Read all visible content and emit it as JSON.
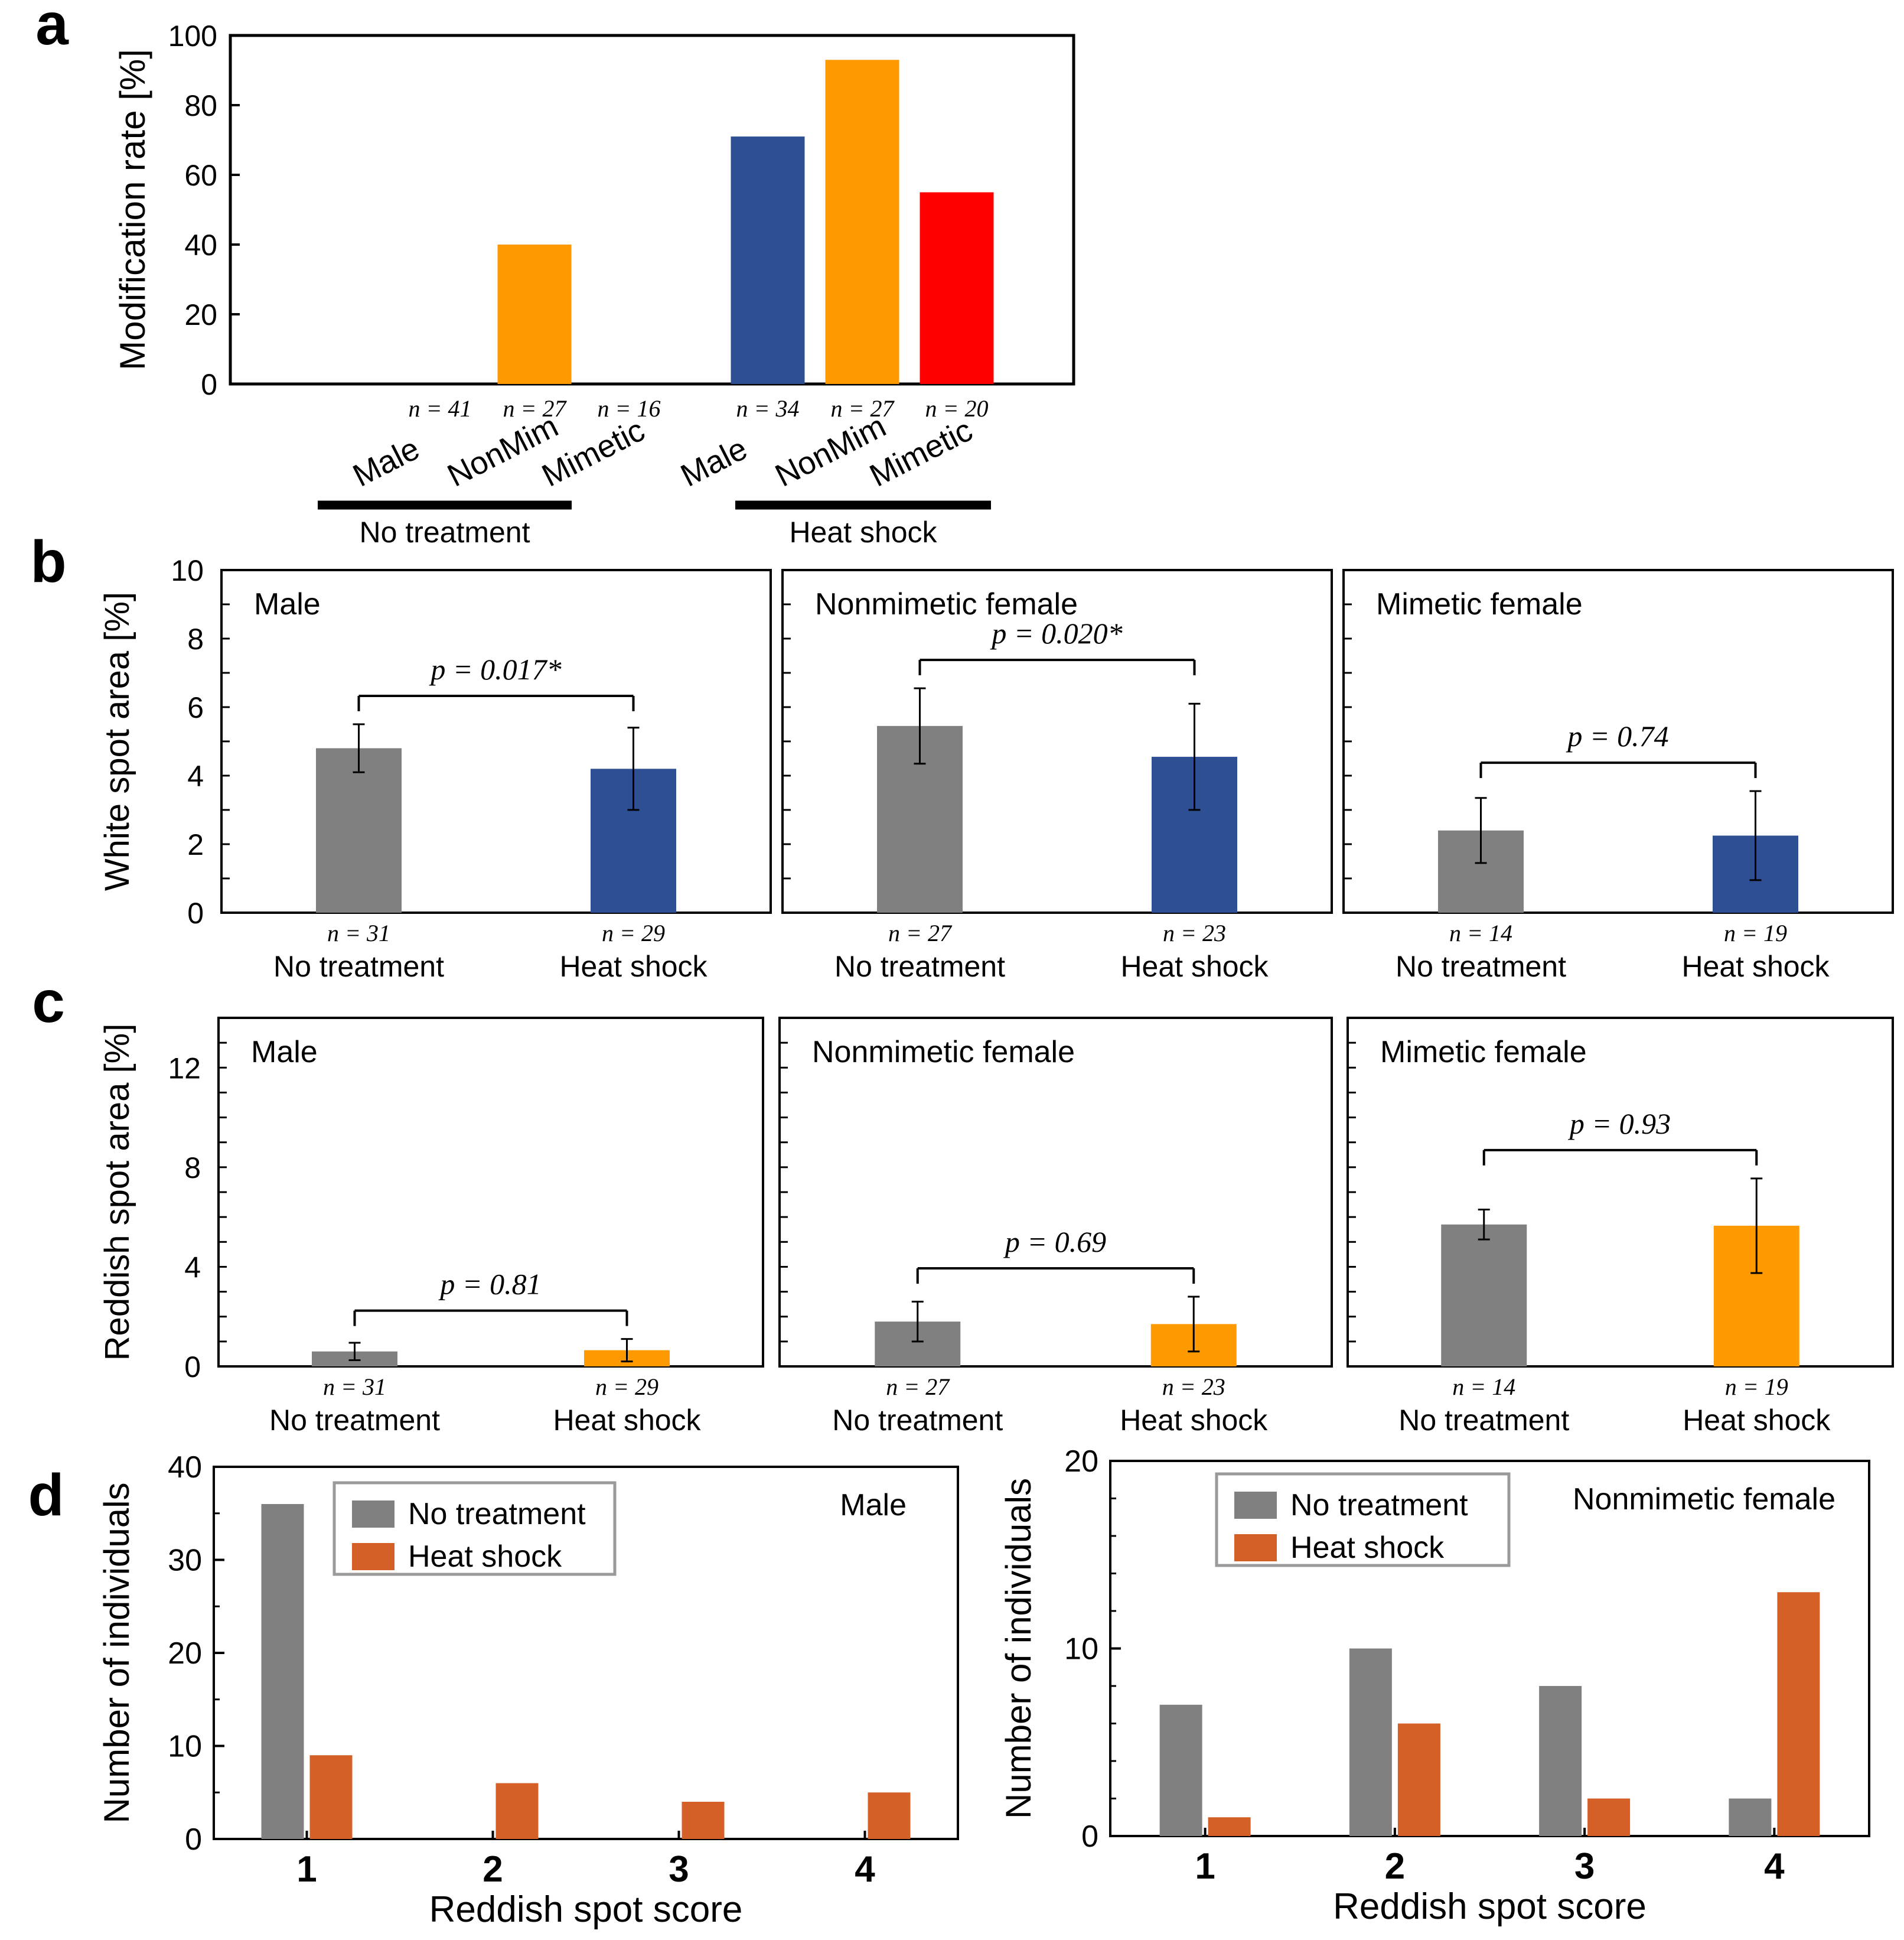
{
  "colors": {
    "gray": "#808080",
    "blue": "#2E4F93",
    "orange": "#FF9900",
    "red": "#FF0000",
    "dorange": "#D45F27",
    "axis": "#000000"
  },
  "panel_labels": {
    "a": "a",
    "b": "b",
    "c": "c",
    "d": "d"
  },
  "common": {
    "no_treatment": "No treatment",
    "heat_shock": "Heat shock",
    "male": "Male",
    "nonmimetic_female": "Nonmimetic female",
    "mimetic_female": "Mimetic female"
  },
  "chart_data": [
    {
      "id": "a",
      "type": "bar",
      "ylabel": "Modification rate [%]",
      "ylim": [
        0,
        100
      ],
      "yticks": [
        0,
        20,
        40,
        60,
        80,
        100
      ],
      "groups": [
        {
          "name": "No treatment",
          "categories": [
            "Male",
            "NonMim",
            "Mimetic"
          ],
          "n": [
            "n = 41",
            "n = 27",
            "n = 16"
          ],
          "values": [
            0,
            40,
            0
          ],
          "colors": [
            "blue",
            "orange",
            "red"
          ]
        },
        {
          "name": "Heat shock",
          "categories": [
            "Male",
            "NonMim",
            "Mimetic"
          ],
          "n": [
            "n = 34",
            "n = 27",
            "n = 20"
          ],
          "values": [
            71,
            93,
            55
          ],
          "colors": [
            "blue",
            "orange",
            "red"
          ]
        }
      ]
    },
    {
      "id": "b",
      "type": "bar",
      "ylabel": "White spot area [%]",
      "ylim": [
        0,
        10
      ],
      "yticks": [
        0,
        2,
        4,
        6,
        8,
        10
      ],
      "panels": [
        {
          "title": "Male",
          "categories": [
            "No treatment",
            "Heat shock"
          ],
          "n": [
            "n = 31",
            "n = 29"
          ],
          "values": [
            4.8,
            4.2
          ],
          "errors": [
            0.7,
            1.2
          ],
          "p": "p = 0.017*"
        },
        {
          "title": "Nonmimetic female",
          "categories": [
            "No treatment",
            "Heat shock"
          ],
          "n": [
            "n = 27",
            "n = 23"
          ],
          "values": [
            5.45,
            4.55
          ],
          "errors": [
            1.1,
            1.55
          ],
          "p": "p = 0.020*"
        },
        {
          "title": "Mimetic female",
          "categories": [
            "No treatment",
            "Heat shock"
          ],
          "n": [
            "n = 14",
            "n = 19"
          ],
          "values": [
            2.4,
            2.25
          ],
          "errors": [
            0.95,
            1.3
          ],
          "p": "p = 0.74"
        }
      ]
    },
    {
      "id": "c",
      "type": "bar",
      "ylabel": "Reddish spot area [%]",
      "ylim": [
        0,
        14
      ],
      "yticks": [
        0,
        4,
        8,
        12
      ],
      "panels": [
        {
          "title": "Male",
          "categories": [
            "No treatment",
            "Heat shock"
          ],
          "n": [
            "n = 31",
            "n = 29"
          ],
          "values": [
            0.6,
            0.65
          ],
          "errors": [
            0.35,
            0.45
          ],
          "p": "p = 0.81"
        },
        {
          "title": "Nonmimetic female",
          "categories": [
            "No treatment",
            "Heat shock"
          ],
          "n": [
            "n = 27",
            "n = 23"
          ],
          "values": [
            1.8,
            1.7
          ],
          "errors": [
            0.8,
            1.1
          ],
          "p": "p = 0.69"
        },
        {
          "title": "Mimetic female",
          "categories": [
            "No treatment",
            "Heat shock"
          ],
          "n": [
            "n = 14",
            "n = 19"
          ],
          "values": [
            5.7,
            5.65
          ],
          "errors": [
            0.6,
            1.9
          ],
          "p": "p = 0.93"
        }
      ]
    },
    {
      "id": "d-male",
      "type": "bar",
      "title": "Male",
      "xlabel": "Reddish spot score",
      "ylabel": "Number of individuals",
      "ylim": [
        0,
        40
      ],
      "yticks": [
        0,
        10,
        20,
        30,
        40
      ],
      "categories": [
        "1",
        "2",
        "3",
        "4"
      ],
      "series": [
        {
          "name": "No treatment",
          "color": "gray",
          "values": [
            36,
            0,
            0,
            0
          ]
        },
        {
          "name": "Heat shock",
          "color": "dorange",
          "values": [
            9,
            6,
            4,
            5
          ]
        }
      ]
    },
    {
      "id": "d-nonmimetic",
      "type": "bar",
      "title": "Nonmimetic female",
      "xlabel": "Reddish spot score",
      "ylabel": "Number of individuals",
      "ylim": [
        0,
        20
      ],
      "yticks": [
        0,
        10,
        20
      ],
      "categories": [
        "1",
        "2",
        "3",
        "4"
      ],
      "series": [
        {
          "name": "No treatment",
          "color": "gray",
          "values": [
            7,
            10,
            8,
            2
          ]
        },
        {
          "name": "Heat shock",
          "color": "dorange",
          "values": [
            1,
            6,
            2,
            13
          ]
        }
      ]
    }
  ]
}
